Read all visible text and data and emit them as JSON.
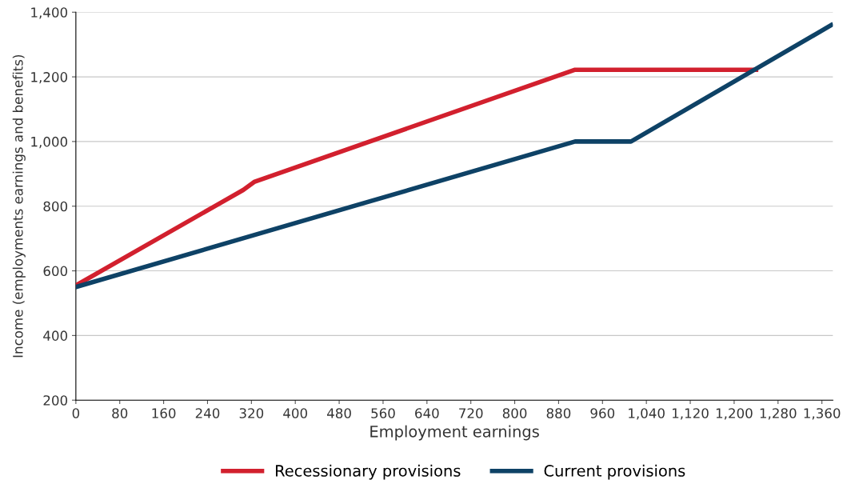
{
  "chart_data": {
    "type": "line",
    "xlabel": "Employment earnings",
    "ylabel": "Income (employments earnings and benefits)",
    "xlim": [
      0,
      1380
    ],
    "ylim": [
      200,
      1400
    ],
    "xticks": [
      {
        "value": 0,
        "label": "0"
      },
      {
        "value": 80,
        "label": "80"
      },
      {
        "value": 160,
        "label": "160"
      },
      {
        "value": 240,
        "label": "240"
      },
      {
        "value": 320,
        "label": "320"
      },
      {
        "value": 400,
        "label": "400"
      },
      {
        "value": 480,
        "label": "480"
      },
      {
        "value": 560,
        "label": "560"
      },
      {
        "value": 640,
        "label": "640"
      },
      {
        "value": 720,
        "label": "720"
      },
      {
        "value": 800,
        "label": "800"
      },
      {
        "value": 880,
        "label": "880"
      },
      {
        "value": 960,
        "label": "960"
      },
      {
        "value": 1040,
        "label": "1,040"
      },
      {
        "value": 1120,
        "label": "1,120"
      },
      {
        "value": 1200,
        "label": "1,200"
      },
      {
        "value": 1280,
        "label": "1,280"
      },
      {
        "value": 1360,
        "label": "1,360"
      }
    ],
    "yticks": [
      {
        "value": 200,
        "label": "200"
      },
      {
        "value": 400,
        "label": "400"
      },
      {
        "value": 600,
        "label": "600"
      },
      {
        "value": 800,
        "label": "800"
      },
      {
        "value": 1000,
        "label": "1,000"
      },
      {
        "value": 1200,
        "label": "1,200"
      },
      {
        "value": 1400,
        "label": "1,400"
      }
    ],
    "grid": "y",
    "legend": "bottom",
    "marker": "none",
    "line_style": "solid",
    "series": [
      {
        "name": "Recessionary provisions",
        "color": "#d2202e",
        "x": [
          0,
          305,
          325,
          910,
          1240
        ],
        "values": [
          555,
          850,
          875,
          1222,
          1222
        ]
      },
      {
        "name": "Current provisions",
        "color": "#0e4266",
        "x": [
          0,
          910,
          1012,
          1377
        ],
        "values": [
          550,
          1000,
          1000,
          1360
        ]
      }
    ]
  }
}
